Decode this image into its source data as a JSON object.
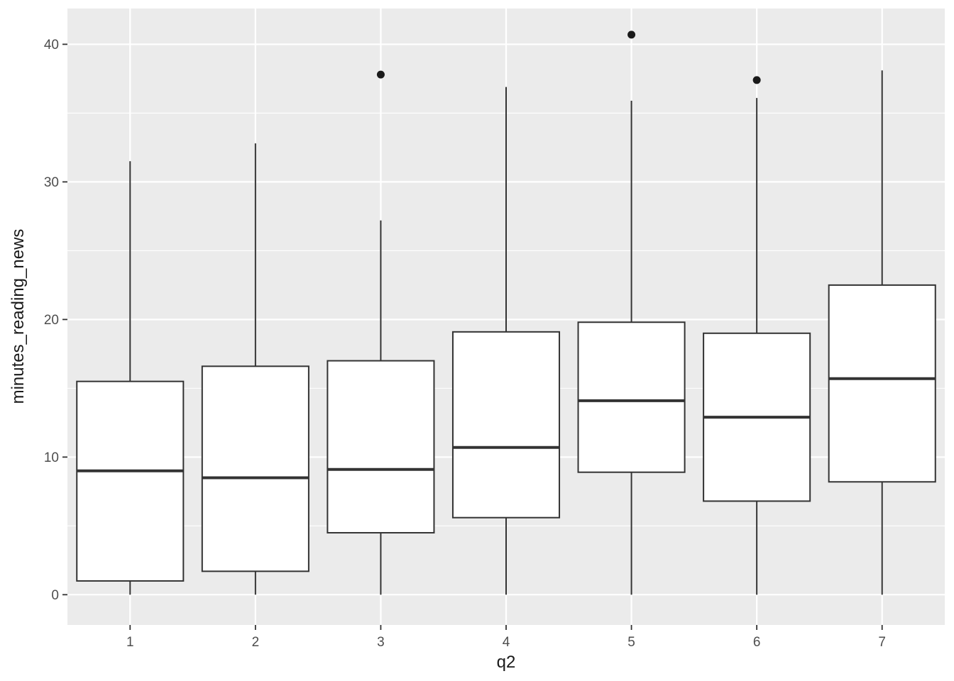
{
  "chart_data": {
    "type": "boxplot",
    "title": "",
    "xlabel": "q2",
    "ylabel": "minutes_reading_news",
    "categories": [
      "1",
      "2",
      "3",
      "4",
      "5",
      "6",
      "7"
    ],
    "ylim": [
      -2.2,
      42.6
    ],
    "yticks": [
      0,
      10,
      20,
      30,
      40
    ],
    "yminor": [
      5,
      15,
      25,
      35
    ],
    "grid": true,
    "legend": "none",
    "boxes": [
      {
        "category": "1",
        "whisker_low": 0,
        "q1": 1.0,
        "median": 9.0,
        "q3": 15.5,
        "whisker_high": 31.5,
        "outliers": []
      },
      {
        "category": "2",
        "whisker_low": 0,
        "q1": 1.7,
        "median": 8.5,
        "q3": 16.6,
        "whisker_high": 32.8,
        "outliers": []
      },
      {
        "category": "3",
        "whisker_low": 0,
        "q1": 4.5,
        "median": 9.1,
        "q3": 17.0,
        "whisker_high": 27.2,
        "outliers": [
          37.8
        ]
      },
      {
        "category": "4",
        "whisker_low": 0,
        "q1": 5.6,
        "median": 10.7,
        "q3": 19.1,
        "whisker_high": 36.9,
        "outliers": []
      },
      {
        "category": "5",
        "whisker_low": 0,
        "q1": 8.9,
        "median": 14.1,
        "q3": 19.8,
        "whisker_high": 35.9,
        "outliers": [
          40.7
        ]
      },
      {
        "category": "6",
        "whisker_low": 0,
        "q1": 6.8,
        "median": 12.9,
        "q3": 19.0,
        "whisker_high": 36.1,
        "outliers": [
          37.4
        ]
      },
      {
        "category": "7",
        "whisker_low": 0,
        "q1": 8.2,
        "median": 15.7,
        "q3": 22.5,
        "whisker_high": 38.1,
        "outliers": []
      }
    ],
    "colors": {
      "panel_bg": "#EBEBEB",
      "grid_major": "#FFFFFF",
      "grid_minor": "#FFFFFF",
      "box_fill": "#FFFFFF",
      "box_stroke": "#333333",
      "median": "#333333",
      "outlier": "#1a1a1a",
      "tick": "#333333",
      "tick_text": "#4D4D4D"
    }
  }
}
